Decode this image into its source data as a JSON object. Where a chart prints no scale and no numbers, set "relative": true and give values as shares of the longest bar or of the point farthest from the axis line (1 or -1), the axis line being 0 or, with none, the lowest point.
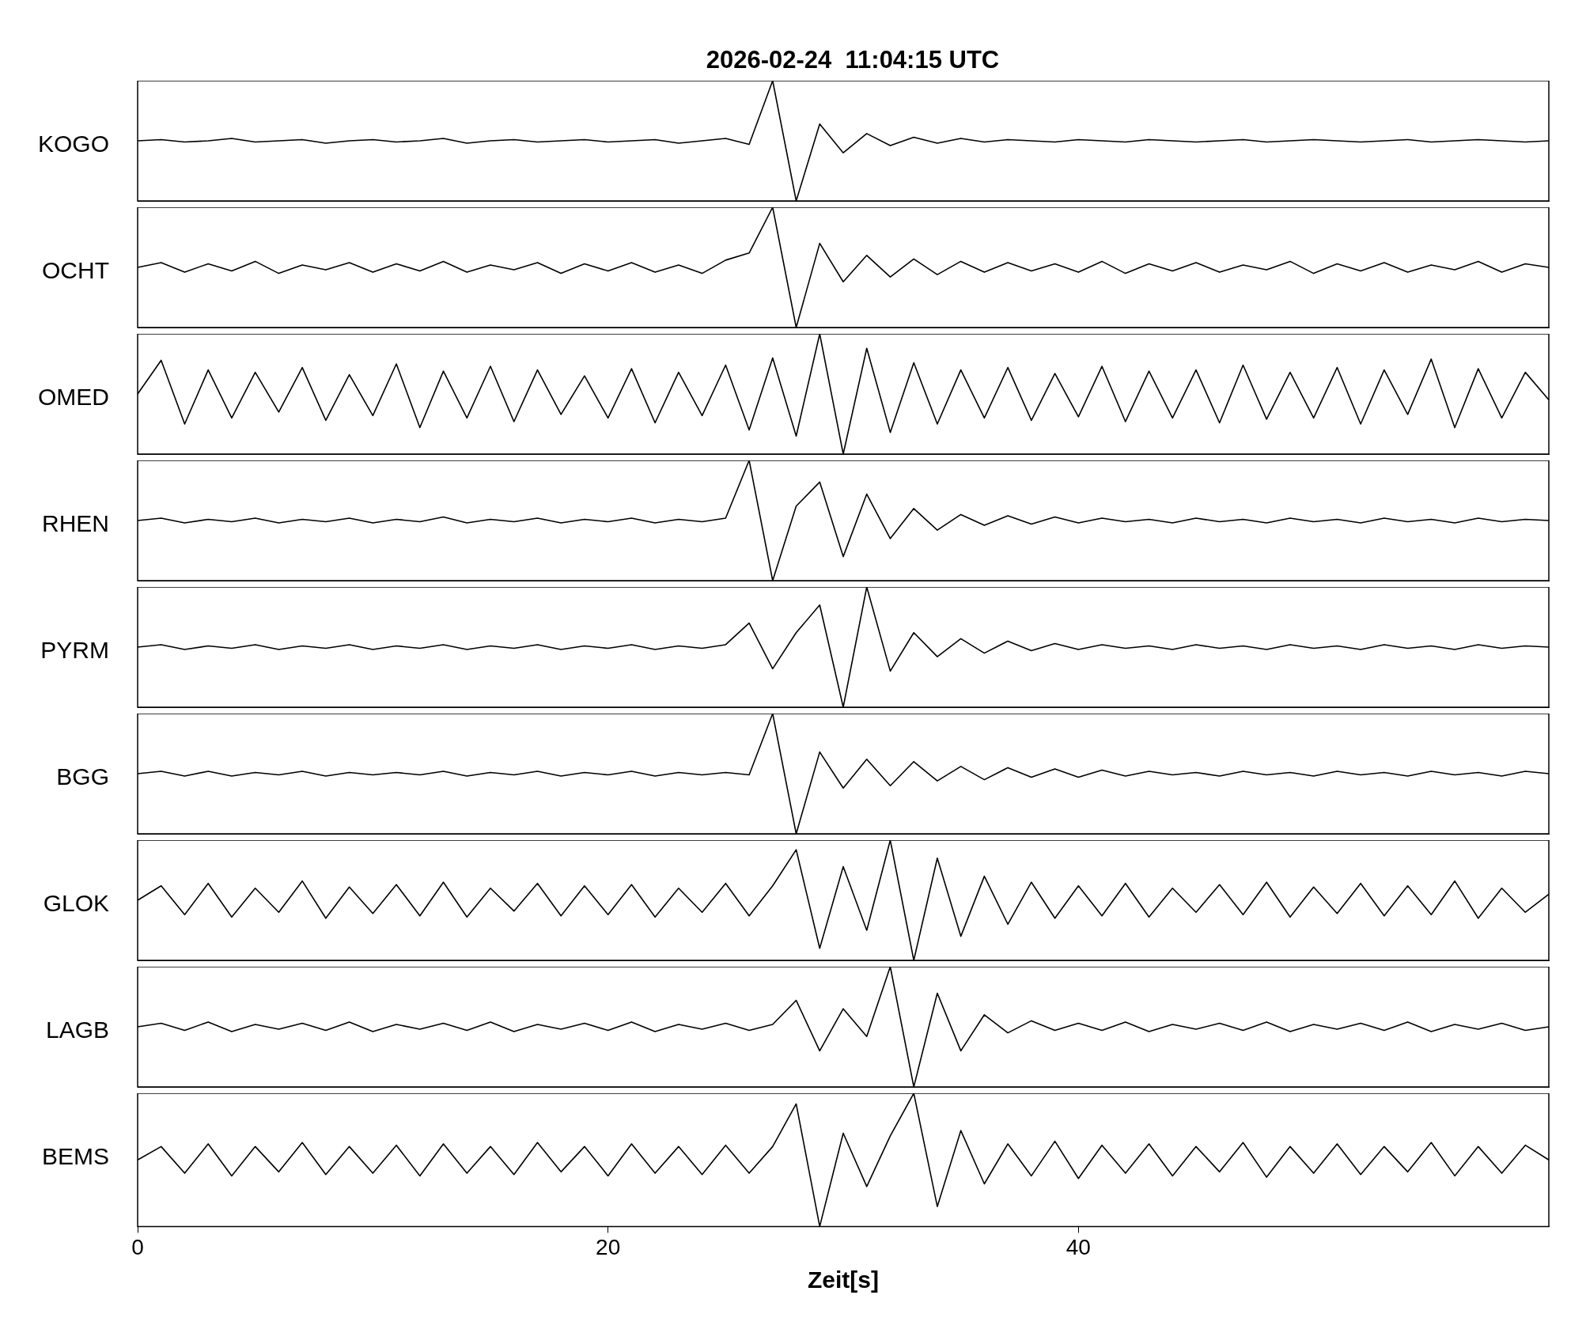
{
  "chart_data": [
    {
      "type": "line",
      "title": "2026-02-24  11:04:15 UTC",
      "ylabel": "KOGO",
      "relative": true,
      "tick_labels": false,
      "categories": [
        null,
        null,
        null,
        null,
        null,
        null,
        null,
        null,
        null,
        null,
        null,
        null,
        null,
        null,
        null,
        null,
        null,
        null,
        null,
        null,
        null,
        null,
        null,
        null,
        null,
        null,
        null,
        null,
        null,
        null,
        null,
        null,
        null,
        null,
        null,
        null,
        null,
        null,
        null,
        null,
        null,
        null,
        null,
        null,
        null,
        null,
        null,
        null,
        null,
        null,
        null,
        null,
        null,
        null,
        null,
        null,
        null,
        null,
        null,
        null,
        null
      ],
      "series": [
        {
          "color": "#000000",
          "values": [
            0.5,
            0.51,
            0.49,
            0.5,
            0.52,
            0.49,
            0.5,
            0.51,
            0.48,
            0.5,
            0.51,
            0.49,
            0.5,
            0.52,
            0.48,
            0.5,
            0.51,
            0.49,
            0.5,
            0.51,
            0.49,
            0.5,
            0.51,
            0.48,
            0.5,
            0.52,
            0.47,
            1,
            0,
            0.64,
            0.4,
            0.56,
            0.46,
            0.53,
            0.48,
            0.52,
            0.49,
            0.51,
            0.5,
            0.49,
            0.51,
            0.5,
            0.49,
            0.51,
            0.5,
            0.49,
            0.5,
            0.51,
            0.49,
            0.5,
            0.51,
            0.5,
            0.49,
            0.5,
            0.51,
            0.49,
            0.5,
            0.51,
            0.5,
            0.49,
            0.5
          ]
        }
      ]
    },
    {
      "type": "line",
      "ylabel": "OCHT",
      "relative": true,
      "tick_labels": false,
      "categories": [
        null,
        null,
        null,
        null,
        null,
        null,
        null,
        null,
        null,
        null,
        null,
        null,
        null,
        null,
        null,
        null,
        null,
        null,
        null,
        null,
        null,
        null,
        null,
        null,
        null,
        null,
        null,
        null,
        null,
        null,
        null,
        null,
        null,
        null,
        null,
        null,
        null,
        null,
        null,
        null,
        null,
        null,
        null,
        null,
        null,
        null,
        null,
        null,
        null,
        null,
        null,
        null,
        null,
        null,
        null,
        null,
        null,
        null,
        null,
        null,
        null
      ],
      "series": [
        {
          "color": "#000000",
          "values": [
            0.5,
            0.54,
            0.46,
            0.53,
            0.47,
            0.55,
            0.45,
            0.52,
            0.48,
            0.54,
            0.46,
            0.53,
            0.47,
            0.55,
            0.46,
            0.52,
            0.48,
            0.54,
            0.45,
            0.53,
            0.47,
            0.54,
            0.46,
            0.52,
            0.45,
            0.56,
            0.62,
            1,
            0,
            0.7,
            0.38,
            0.6,
            0.42,
            0.57,
            0.44,
            0.55,
            0.46,
            0.54,
            0.47,
            0.53,
            0.46,
            0.55,
            0.45,
            0.53,
            0.47,
            0.54,
            0.46,
            0.52,
            0.48,
            0.55,
            0.45,
            0.53,
            0.47,
            0.54,
            0.46,
            0.52,
            0.48,
            0.55,
            0.46,
            0.53,
            0.5
          ]
        }
      ]
    },
    {
      "type": "line",
      "ylabel": "OMED",
      "relative": true,
      "tick_labels": false,
      "categories": [
        null,
        null,
        null,
        null,
        null,
        null,
        null,
        null,
        null,
        null,
        null,
        null,
        null,
        null,
        null,
        null,
        null,
        null,
        null,
        null,
        null,
        null,
        null,
        null,
        null,
        null,
        null,
        null,
        null,
        null,
        null,
        null,
        null,
        null,
        null,
        null,
        null,
        null,
        null,
        null,
        null,
        null,
        null,
        null,
        null,
        null,
        null,
        null,
        null,
        null,
        null,
        null,
        null,
        null,
        null,
        null,
        null,
        null,
        null,
        null,
        null
      ],
      "series": [
        {
          "color": "#000000",
          "values": [
            0.5,
            0.78,
            0.25,
            0.7,
            0.3,
            0.68,
            0.35,
            0.72,
            0.28,
            0.66,
            0.32,
            0.75,
            0.22,
            0.69,
            0.3,
            0.73,
            0.27,
            0.7,
            0.33,
            0.65,
            0.3,
            0.71,
            0.26,
            0.68,
            0.32,
            0.74,
            0.2,
            0.8,
            0.15,
            1,
            0,
            0.88,
            0.18,
            0.76,
            0.25,
            0.7,
            0.3,
            0.72,
            0.28,
            0.67,
            0.31,
            0.73,
            0.27,
            0.69,
            0.3,
            0.7,
            0.26,
            0.74,
            0.29,
            0.68,
            0.3,
            0.72,
            0.25,
            0.7,
            0.33,
            0.79,
            0.22,
            0.71,
            0.3,
            0.68,
            0.45
          ]
        }
      ]
    },
    {
      "type": "line",
      "ylabel": "RHEN",
      "relative": true,
      "tick_labels": false,
      "categories": [
        null,
        null,
        null,
        null,
        null,
        null,
        null,
        null,
        null,
        null,
        null,
        null,
        null,
        null,
        null,
        null,
        null,
        null,
        null,
        null,
        null,
        null,
        null,
        null,
        null,
        null,
        null,
        null,
        null,
        null,
        null,
        null,
        null,
        null,
        null,
        null,
        null,
        null,
        null,
        null,
        null,
        null,
        null,
        null,
        null,
        null,
        null,
        null,
        null,
        null,
        null,
        null,
        null,
        null,
        null,
        null,
        null,
        null,
        null,
        null,
        null
      ],
      "series": [
        {
          "color": "#000000",
          "values": [
            0.5,
            0.52,
            0.48,
            0.51,
            0.49,
            0.52,
            0.48,
            0.51,
            0.49,
            0.52,
            0.48,
            0.51,
            0.49,
            0.53,
            0.48,
            0.51,
            0.49,
            0.52,
            0.48,
            0.51,
            0.49,
            0.52,
            0.48,
            0.51,
            0.49,
            0.52,
            1,
            0,
            0.62,
            0.82,
            0.2,
            0.72,
            0.35,
            0.6,
            0.42,
            0.55,
            0.46,
            0.54,
            0.47,
            0.53,
            0.48,
            0.52,
            0.49,
            0.51,
            0.48,
            0.52,
            0.49,
            0.51,
            0.48,
            0.52,
            0.49,
            0.51,
            0.48,
            0.52,
            0.49,
            0.51,
            0.48,
            0.52,
            0.49,
            0.51,
            0.5
          ]
        }
      ]
    },
    {
      "type": "line",
      "ylabel": "PYRM",
      "relative": true,
      "tick_labels": false,
      "categories": [
        null,
        null,
        null,
        null,
        null,
        null,
        null,
        null,
        null,
        null,
        null,
        null,
        null,
        null,
        null,
        null,
        null,
        null,
        null,
        null,
        null,
        null,
        null,
        null,
        null,
        null,
        null,
        null,
        null,
        null,
        null,
        null,
        null,
        null,
        null,
        null,
        null,
        null,
        null,
        null,
        null,
        null,
        null,
        null,
        null,
        null,
        null,
        null,
        null,
        null,
        null,
        null,
        null,
        null,
        null,
        null,
        null,
        null,
        null,
        null,
        null
      ],
      "series": [
        {
          "color": "#000000",
          "values": [
            0.5,
            0.52,
            0.48,
            0.51,
            0.49,
            0.52,
            0.48,
            0.51,
            0.49,
            0.52,
            0.48,
            0.51,
            0.49,
            0.52,
            0.48,
            0.51,
            0.49,
            0.52,
            0.48,
            0.51,
            0.49,
            0.52,
            0.48,
            0.51,
            0.49,
            0.52,
            0.7,
            0.32,
            0.62,
            0.85,
            0,
            1,
            0.3,
            0.62,
            0.42,
            0.57,
            0.45,
            0.55,
            0.47,
            0.53,
            0.48,
            0.52,
            0.49,
            0.51,
            0.48,
            0.52,
            0.49,
            0.51,
            0.48,
            0.52,
            0.49,
            0.51,
            0.48,
            0.52,
            0.49,
            0.51,
            0.48,
            0.52,
            0.49,
            0.51,
            0.5
          ]
        }
      ]
    },
    {
      "type": "line",
      "ylabel": "BGG",
      "relative": true,
      "tick_labels": false,
      "categories": [
        null,
        null,
        null,
        null,
        null,
        null,
        null,
        null,
        null,
        null,
        null,
        null,
        null,
        null,
        null,
        null,
        null,
        null,
        null,
        null,
        null,
        null,
        null,
        null,
        null,
        null,
        null,
        null,
        null,
        null,
        null,
        null,
        null,
        null,
        null,
        null,
        null,
        null,
        null,
        null,
        null,
        null,
        null,
        null,
        null,
        null,
        null,
        null,
        null,
        null,
        null,
        null,
        null,
        null,
        null,
        null,
        null,
        null,
        null,
        null,
        null
      ],
      "series": [
        {
          "color": "#000000",
          "values": [
            0.5,
            0.52,
            0.48,
            0.52,
            0.48,
            0.51,
            0.49,
            0.52,
            0.48,
            0.51,
            0.49,
            0.51,
            0.49,
            0.52,
            0.48,
            0.51,
            0.49,
            0.52,
            0.48,
            0.51,
            0.49,
            0.52,
            0.48,
            0.51,
            0.49,
            0.51,
            0.49,
            1,
            0,
            0.68,
            0.38,
            0.62,
            0.4,
            0.6,
            0.44,
            0.56,
            0.45,
            0.55,
            0.47,
            0.54,
            0.47,
            0.53,
            0.48,
            0.52,
            0.49,
            0.51,
            0.48,
            0.52,
            0.49,
            0.51,
            0.48,
            0.52,
            0.49,
            0.51,
            0.48,
            0.52,
            0.49,
            0.51,
            0.48,
            0.52,
            0.5
          ]
        }
      ]
    },
    {
      "type": "line",
      "ylabel": "GLOK",
      "relative": true,
      "tick_labels": false,
      "categories": [
        null,
        null,
        null,
        null,
        null,
        null,
        null,
        null,
        null,
        null,
        null,
        null,
        null,
        null,
        null,
        null,
        null,
        null,
        null,
        null,
        null,
        null,
        null,
        null,
        null,
        null,
        null,
        null,
        null,
        null,
        null,
        null,
        null,
        null,
        null,
        null,
        null,
        null,
        null,
        null,
        null,
        null,
        null,
        null,
        null,
        null,
        null,
        null,
        null,
        null,
        null,
        null,
        null,
        null,
        null,
        null,
        null,
        null,
        null,
        null,
        null
      ],
      "series": [
        {
          "color": "#000000",
          "values": [
            0.5,
            0.62,
            0.38,
            0.64,
            0.36,
            0.6,
            0.4,
            0.66,
            0.35,
            0.61,
            0.39,
            0.63,
            0.37,
            0.65,
            0.36,
            0.6,
            0.41,
            0.64,
            0.37,
            0.62,
            0.38,
            0.63,
            0.36,
            0.6,
            0.4,
            0.64,
            0.37,
            0.62,
            0.92,
            0.1,
            0.78,
            0.25,
            1,
            0,
            0.85,
            0.2,
            0.7,
            0.3,
            0.65,
            0.35,
            0.62,
            0.37,
            0.64,
            0.36,
            0.6,
            0.4,
            0.63,
            0.38,
            0.65,
            0.36,
            0.61,
            0.39,
            0.64,
            0.37,
            0.62,
            0.38,
            0.66,
            0.35,
            0.6,
            0.4,
            0.55
          ]
        }
      ]
    },
    {
      "type": "line",
      "ylabel": "LAGB",
      "relative": true,
      "tick_labels": false,
      "categories": [
        null,
        null,
        null,
        null,
        null,
        null,
        null,
        null,
        null,
        null,
        null,
        null,
        null,
        null,
        null,
        null,
        null,
        null,
        null,
        null,
        null,
        null,
        null,
        null,
        null,
        null,
        null,
        null,
        null,
        null,
        null,
        null,
        null,
        null,
        null,
        null,
        null,
        null,
        null,
        null,
        null,
        null,
        null,
        null,
        null,
        null,
        null,
        null,
        null,
        null,
        null,
        null,
        null,
        null,
        null,
        null,
        null,
        null,
        null,
        null,
        null
      ],
      "series": [
        {
          "color": "#000000",
          "values": [
            0.5,
            0.53,
            0.47,
            0.54,
            0.46,
            0.52,
            0.48,
            0.53,
            0.47,
            0.54,
            0.46,
            0.52,
            0.48,
            0.53,
            0.47,
            0.54,
            0.46,
            0.52,
            0.48,
            0.53,
            0.47,
            0.54,
            0.46,
            0.52,
            0.48,
            0.53,
            0.47,
            0.52,
            0.72,
            0.3,
            0.65,
            0.42,
            1,
            0,
            0.78,
            0.3,
            0.6,
            0.45,
            0.55,
            0.47,
            0.53,
            0.47,
            0.54,
            0.46,
            0.52,
            0.48,
            0.53,
            0.47,
            0.54,
            0.46,
            0.52,
            0.48,
            0.53,
            0.47,
            0.54,
            0.46,
            0.52,
            0.48,
            0.53,
            0.47,
            0.5
          ]
        }
      ]
    },
    {
      "type": "line",
      "ylabel": "BEMS",
      "xlabel": "Zeit[s]",
      "relative": true,
      "tick_labels": "x",
      "categories": [
        "0",
        null,
        null,
        null,
        null,
        null,
        null,
        null,
        null,
        null,
        null,
        null,
        null,
        null,
        null,
        null,
        null,
        null,
        null,
        null,
        "20",
        null,
        null,
        null,
        null,
        null,
        null,
        null,
        null,
        null,
        null,
        null,
        null,
        null,
        null,
        null,
        null,
        null,
        null,
        null,
        "40",
        null,
        null,
        null,
        null,
        null,
        null,
        null,
        null,
        null,
        null,
        null,
        null,
        null,
        null,
        null,
        null,
        null,
        null,
        null,
        null
      ],
      "series": [
        {
          "color": "#000000",
          "values": [
            0.5,
            0.6,
            0.4,
            0.62,
            0.38,
            0.6,
            0.41,
            0.63,
            0.39,
            0.6,
            0.4,
            0.61,
            0.38,
            0.62,
            0.4,
            0.6,
            0.39,
            0.63,
            0.41,
            0.6,
            0.38,
            0.62,
            0.4,
            0.6,
            0.39,
            0.61,
            0.4,
            0.6,
            0.92,
            0,
            0.7,
            0.3,
            0.68,
            1,
            0.15,
            0.72,
            0.32,
            0.62,
            0.38,
            0.64,
            0.36,
            0.61,
            0.4,
            0.62,
            0.38,
            0.6,
            0.41,
            0.63,
            0.37,
            0.6,
            0.4,
            0.62,
            0.39,
            0.6,
            0.41,
            0.63,
            0.38,
            0.6,
            0.4,
            0.61,
            0.5
          ]
        }
      ]
    }
  ]
}
